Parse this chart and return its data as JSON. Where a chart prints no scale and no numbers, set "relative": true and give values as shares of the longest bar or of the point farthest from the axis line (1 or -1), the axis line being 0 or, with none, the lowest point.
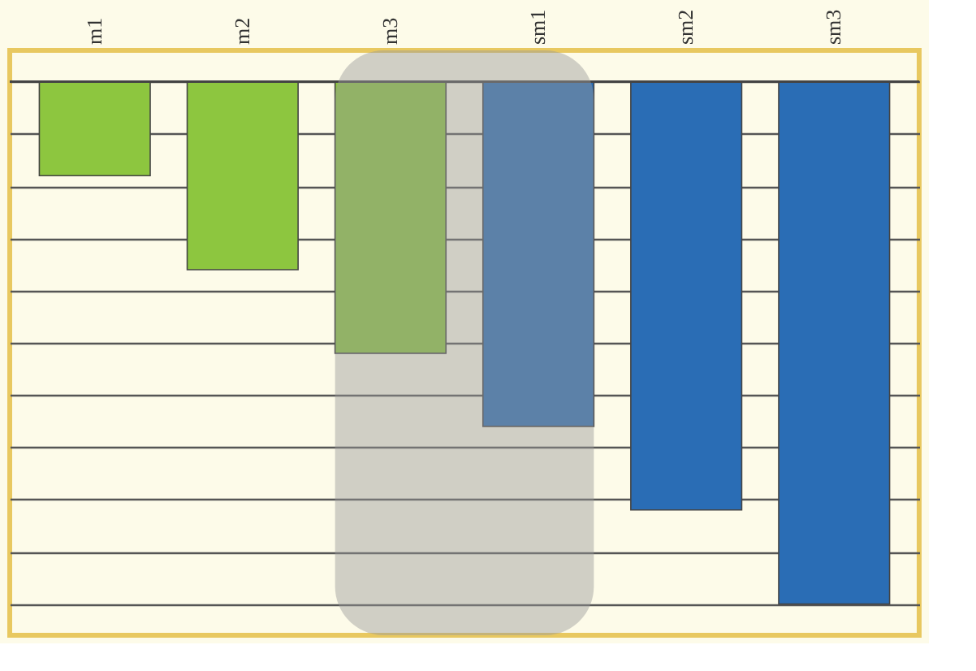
{
  "chart_data": {
    "type": "bar",
    "relative": true,
    "categories": [
      "m1",
      "m2",
      "m3",
      "sm1",
      "sm2",
      "sm3"
    ],
    "values": [
      -0.18,
      -0.36,
      -0.52,
      -0.66,
      -0.82,
      -1
    ],
    "colors": [
      "#8dc63f",
      "#8dc63f",
      "#8dc63f",
      "#2a6db5",
      "#2a6db5",
      "#2a6db5"
    ],
    "grid": "y",
    "bands": [
      {
        "axis": "x",
        "from": "m3",
        "to": "sm1",
        "color": "#9a9a9a"
      }
    ]
  }
}
